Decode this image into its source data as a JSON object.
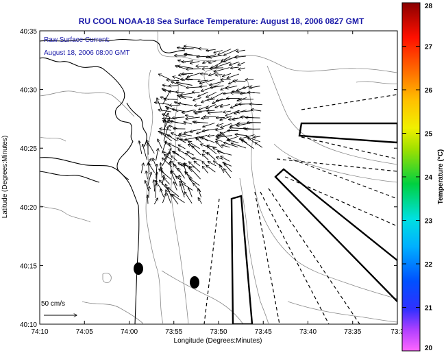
{
  "header": {
    "title": "RU COOL  NOAA-18  Sea Surface Temperature:  August 18, 2006 0827 GMT"
  },
  "annotation": {
    "line1": "Raw Surface Current:",
    "line2": "August 18, 2006 08:00 GMT"
  },
  "scale_label": "50 cm/s",
  "axes": {
    "xlabel": "Longitude (Degrees:Minutes)",
    "ylabel": "Latitude (Degrees:Minutes)",
    "xticks": [
      "74:10",
      "74:05",
      "74:00",
      "73:55",
      "73:50",
      "73:45",
      "73:40",
      "73:35",
      "73:3"
    ],
    "yticks": [
      "40:35",
      "40:30",
      "40:25",
      "40:20",
      "40:15",
      "40:10"
    ]
  },
  "colorbar": {
    "label": "Temperature (°C)",
    "ticks": [
      "28",
      "27",
      "26",
      "25",
      "24",
      "23",
      "22",
      "21",
      "20"
    ],
    "min": 20,
    "max": 28
  },
  "colors": {
    "title": "#1a1aa8",
    "coast": "#000000",
    "bathymetry": "#888888"
  }
}
